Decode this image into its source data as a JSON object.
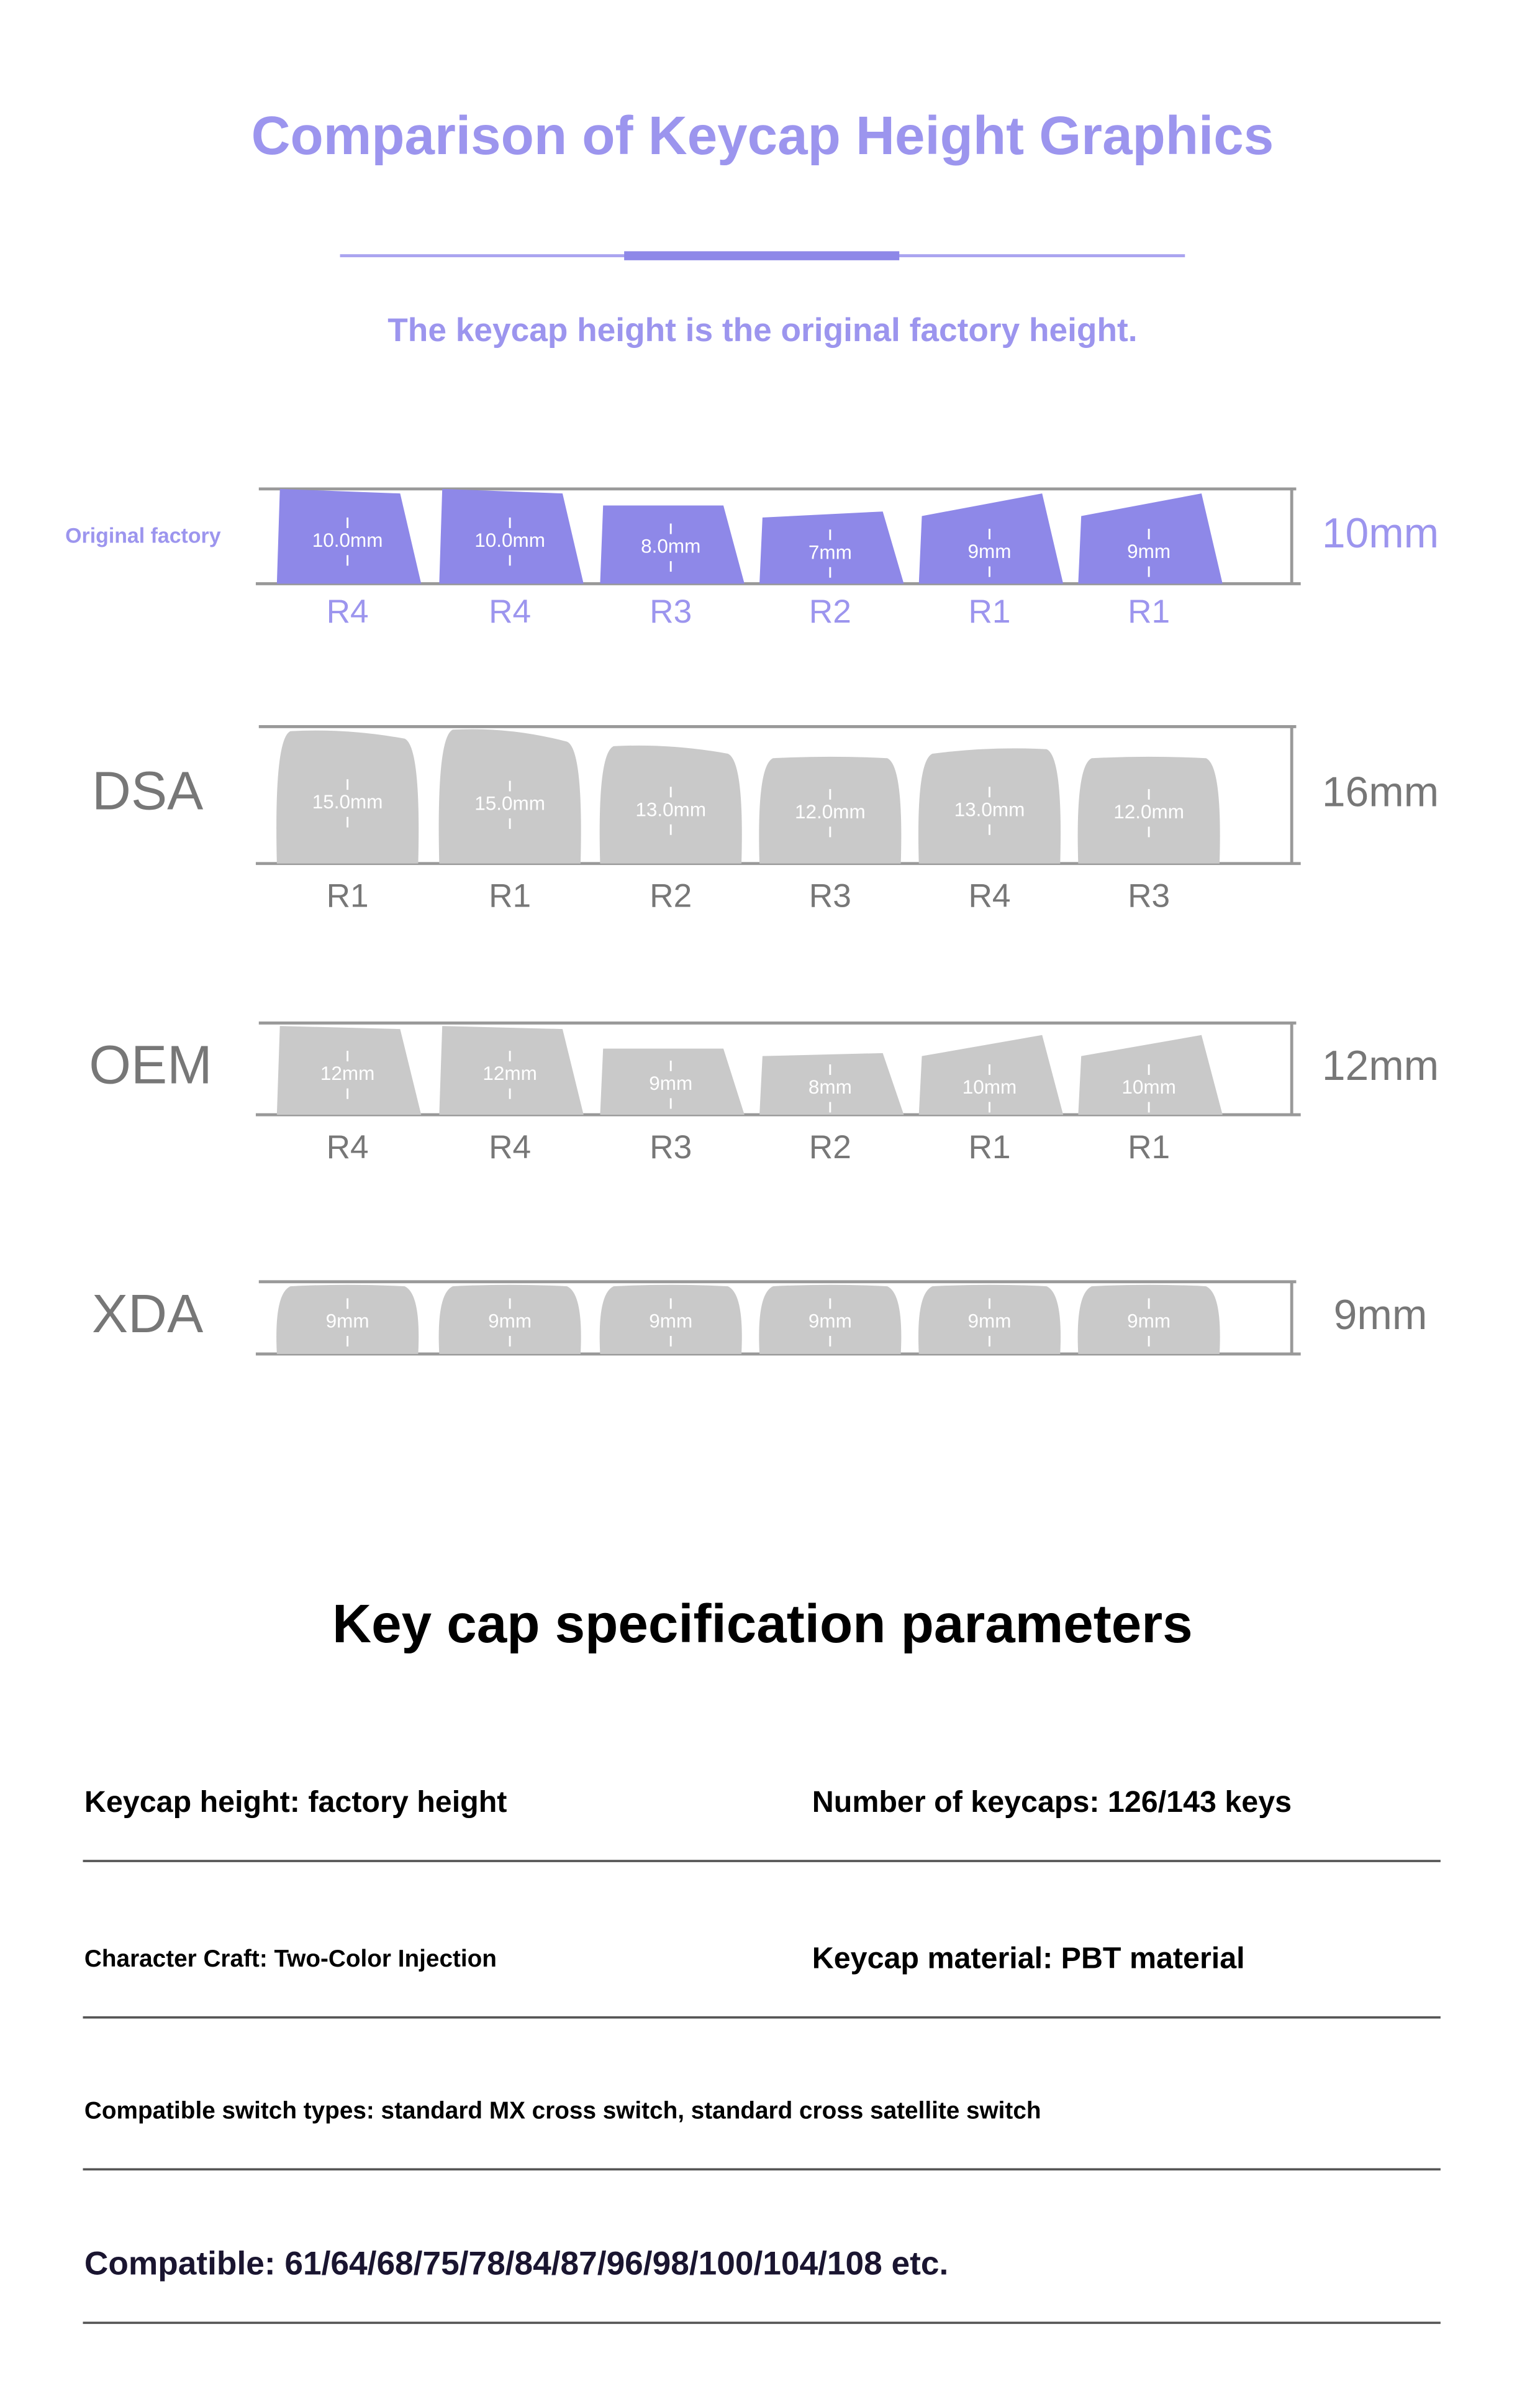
{
  "header": {
    "title": "Comparison of Keycap Height Graphics",
    "subtitle": "The keycap height is the original factory height."
  },
  "profiles": [
    {
      "name": "Original factory",
      "height": "10mm",
      "keys": [
        {
          "label": "10.0mm",
          "row": "R4"
        },
        {
          "label": "10.0mm",
          "row": "R4"
        },
        {
          "label": "8.0mm",
          "row": "R3"
        },
        {
          "label": "7mm",
          "row": "R2"
        },
        {
          "label": "9mm",
          "row": "R1"
        },
        {
          "label": "9mm",
          "row": "R1"
        }
      ]
    },
    {
      "name": "DSA",
      "height": "16mm",
      "keys": [
        {
          "label": "15.0mm",
          "row": "R1"
        },
        {
          "label": "15.0mm",
          "row": "R1"
        },
        {
          "label": "13.0mm",
          "row": "R2"
        },
        {
          "label": "12.0mm",
          "row": "R3"
        },
        {
          "label": "13.0mm",
          "row": "R4"
        },
        {
          "label": "12.0mm",
          "row": "R3"
        }
      ]
    },
    {
      "name": "OEM",
      "height": "12mm",
      "keys": [
        {
          "label": "12mm",
          "row": "R4"
        },
        {
          "label": "12mm",
          "row": "R4"
        },
        {
          "label": "9mm",
          "row": "R3"
        },
        {
          "label": "8mm",
          "row": "R2"
        },
        {
          "label": "10mm",
          "row": "R1"
        },
        {
          "label": "10mm",
          "row": "R1"
        }
      ]
    },
    {
      "name": "XDA",
      "height": "9mm",
      "keys": [
        {
          "label": "9mm"
        },
        {
          "label": "9mm"
        },
        {
          "label": "9mm"
        },
        {
          "label": "9mm"
        },
        {
          "label": "9mm"
        },
        {
          "label": "9mm"
        }
      ]
    }
  ],
  "specs": {
    "title": "Key cap specification parameters",
    "rows": [
      [
        "Keycap height: factory height",
        "Number of keycaps: 126/143 keys"
      ],
      [
        "Character Craft: Two-Color Injection",
        "Keycap material: PBT material"
      ],
      [
        "Compatible switch types: standard MX cross switch, standard cross satellite switch"
      ],
      [
        "Compatible: 61/64/68/75/78/84/87/96/98/100/104/108 etc."
      ]
    ]
  }
}
